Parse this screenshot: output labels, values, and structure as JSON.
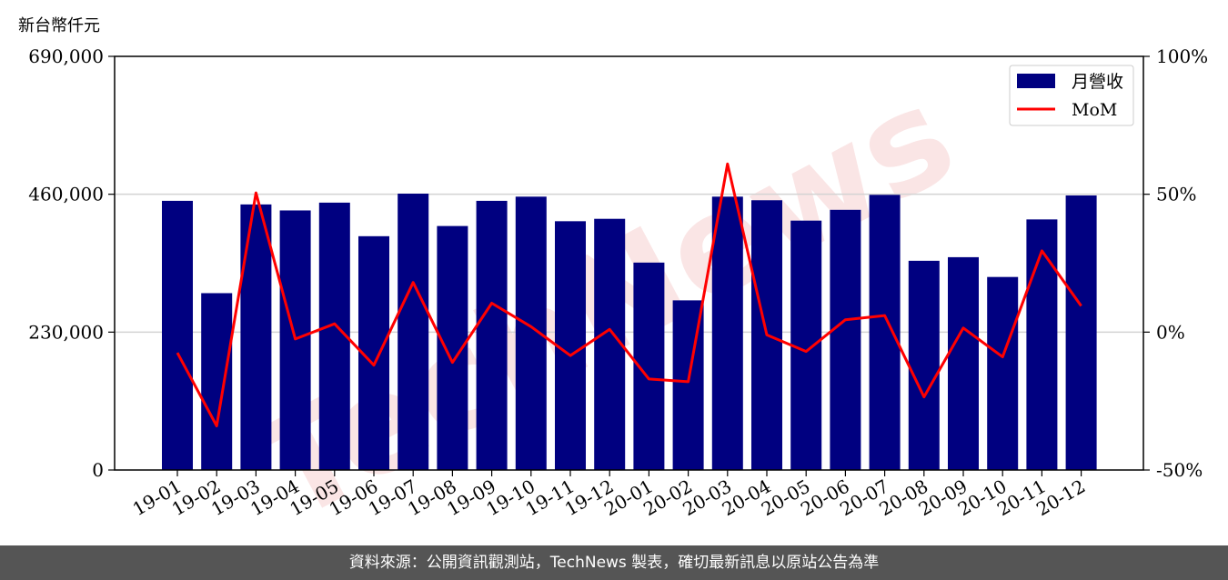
{
  "unit_label": "新台幣仟元",
  "footer": "資料來源：公開資訊觀測站，TechNews 製表，確切最新訊息以原站公告為準",
  "watermark": "TechNews",
  "colors": {
    "bar": "#000080",
    "line": "#ff0000",
    "grid": "#d3d3d3",
    "watermark": "#f4c6c6"
  },
  "chart_data": {
    "type": "bar",
    "categories": [
      "19-01",
      "19-02",
      "19-03",
      "19-04",
      "19-05",
      "19-06",
      "19-07",
      "19-08",
      "19-09",
      "19-10",
      "19-11",
      "19-12",
      "20-01",
      "20-02",
      "20-03",
      "20-04",
      "20-05",
      "20-06",
      "20-07",
      "20-08",
      "20-09",
      "20-10",
      "20-11",
      "20-12"
    ],
    "series": [
      {
        "name": "月營收",
        "type": "bar",
        "axis": "left",
        "values": [
          449000,
          295000,
          443000,
          433000,
          446000,
          390000,
          461000,
          407000,
          449000,
          456000,
          415000,
          419000,
          346000,
          283000,
          456000,
          450000,
          416000,
          434000,
          459000,
          349000,
          355000,
          322000,
          418000,
          458000
        ]
      },
      {
        "name": "MoM",
        "type": "line",
        "axis": "right",
        "values": [
          -7.5,
          -34,
          50.5,
          -2.5,
          3,
          -12,
          18,
          -11,
          10.5,
          2,
          -8.5,
          1,
          -17,
          -18,
          61,
          -1,
          -7,
          4.5,
          6,
          -23.5,
          1.5,
          -9,
          29.5,
          9.5
        ]
      }
    ],
    "yleft": {
      "ticks": [
        0,
        230000,
        460000,
        690000
      ],
      "tick_labels": [
        "0",
        "230,000",
        "460,000",
        "690,000"
      ],
      "ylim": [
        0,
        690000
      ]
    },
    "yright": {
      "ticks": [
        -50,
        0,
        50,
        100
      ],
      "tick_labels": [
        "-50%",
        "0%",
        "50%",
        "100%"
      ],
      "ylim": [
        -50,
        100
      ]
    },
    "grid": "horizontal",
    "legend": "top-right"
  }
}
